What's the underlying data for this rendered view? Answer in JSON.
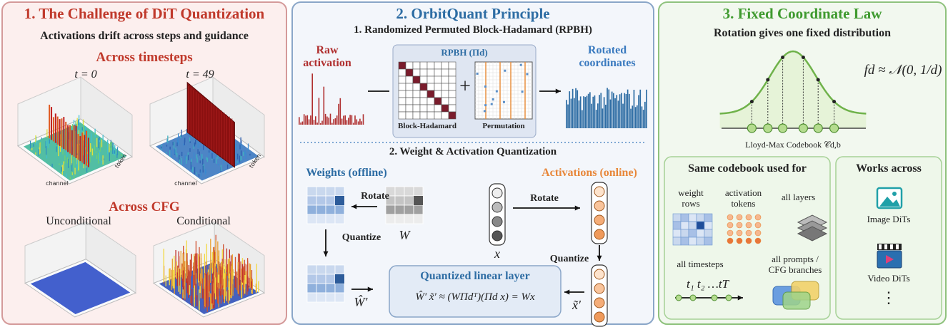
{
  "panel1": {
    "title": "1. The Challenge of DiT Quantization",
    "subtitle": "Activations drift across steps and guidance",
    "timesteps": {
      "heading": "Across timesteps",
      "plots": [
        "t = 0",
        "t = 49"
      ],
      "x_axis": "channel",
      "y_axis": "token"
    },
    "cfg": {
      "heading": "Across CFG",
      "plots": [
        "Unconditional",
        "Conditional"
      ]
    }
  },
  "panel2": {
    "title": "2. OrbitQuant Principle",
    "step1": {
      "heading": "1. Randomized Permuted Block-Hadamard (RPBH)",
      "input": "Raw activation",
      "operator": "RPBH (Πd)",
      "parts": [
        "Block-Hadamard",
        "Permutation"
      ],
      "plus": "+",
      "output": "Rotated coordinates"
    },
    "step2": {
      "heading": "2. Weight & Activation Quantization",
      "weights": {
        "label": "Weights (offline)",
        "rotate": "Rotate",
        "source": "W",
        "quantize": "Quantize",
        "result": "Ŵ′"
      },
      "activations": {
        "label": "Activations (online)",
        "rotate": "Rotate",
        "source": "x",
        "quantize": "Quantize",
        "result": "x̃′"
      },
      "layer": {
        "title": "Quantized linear layer",
        "formula": "Ŵ′ x̃′ ≈ (WΠdᵀ)(Πd x) = Wx"
      }
    }
  },
  "panel3": {
    "title": "3. Fixed Coordinate Law",
    "subtitle": "Rotation gives one fixed distribution",
    "formula": "fd ≈ 𝒩(0, 1/d)",
    "codebook": "Lloyd-Max Codebook 𝒞d,b",
    "shared": {
      "heading": "Same codebook used for",
      "items": [
        "weight rows",
        "activation tokens",
        "all layers",
        "all timesteps",
        "all prompts / CFG branches"
      ],
      "timeline": "t₁ t₂ …tT"
    },
    "scope": {
      "heading": "Works across",
      "items": [
        "Image DiTs",
        "Video DiTs"
      ],
      "more": "⋮"
    }
  }
}
